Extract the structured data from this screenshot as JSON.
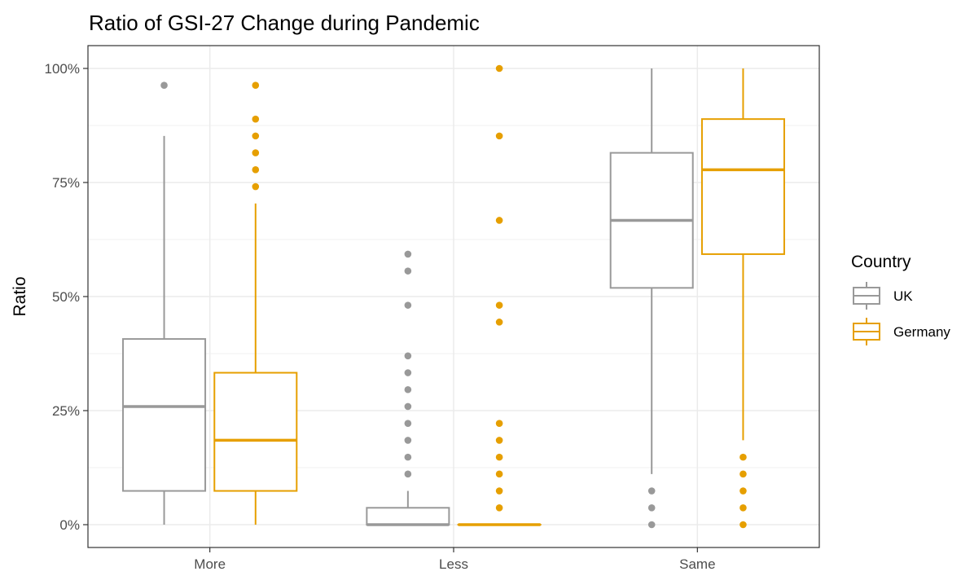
{
  "chart_data": {
    "type": "boxplot",
    "title": "Ratio of GSI-27 Change during Pandemic",
    "xlabel": "",
    "ylabel": "Ratio",
    "categories": [
      "More",
      "Less",
      "Same"
    ],
    "y_ticks": [
      0,
      25,
      50,
      75,
      100
    ],
    "y_tick_labels": [
      "0%",
      "25%",
      "50%",
      "75%",
      "100%"
    ],
    "ylim": [
      -5,
      105
    ],
    "grid": true,
    "legend": {
      "title": "Country",
      "position": "right"
    },
    "series": [
      {
        "name": "UK",
        "color": "#999999",
        "boxes": [
          {
            "category": "More",
            "min": 0,
            "q1": 7.4,
            "median": 25.9,
            "q3": 40.7,
            "max": 85.2,
            "outliers": [
              96.3
            ]
          },
          {
            "category": "Less",
            "min": 0,
            "q1": 0,
            "median": 0,
            "q3": 3.7,
            "max": 7.4,
            "outliers": [
              11.1,
              14.8,
              18.5,
              22.2,
              25.9,
              29.6,
              33.3,
              37.0,
              48.1,
              55.6,
              59.3
            ]
          },
          {
            "category": "Same",
            "min": 11.1,
            "q1": 51.9,
            "median": 66.7,
            "q3": 81.5,
            "max": 100,
            "outliers": [
              0,
              3.7,
              7.4
            ]
          }
        ]
      },
      {
        "name": "Germany",
        "color": "#E69F00",
        "boxes": [
          {
            "category": "More",
            "min": 0,
            "q1": 7.4,
            "median": 18.5,
            "q3": 33.3,
            "max": 70.4,
            "outliers": [
              74.1,
              77.8,
              81.5,
              85.2,
              88.9,
              96.3
            ]
          },
          {
            "category": "Less",
            "min": 0,
            "q1": 0,
            "median": 0,
            "q3": 0,
            "max": 0,
            "outliers": [
              3.7,
              7.4,
              11.1,
              14.8,
              18.5,
              22.2,
              44.4,
              48.1,
              66.7,
              85.2,
              100
            ]
          },
          {
            "category": "Same",
            "min": 18.5,
            "q1": 59.3,
            "median": 77.8,
            "q3": 88.9,
            "max": 100,
            "outliers": [
              0,
              3.7,
              7.4,
              11.1,
              14.8
            ]
          }
        ]
      }
    ]
  }
}
